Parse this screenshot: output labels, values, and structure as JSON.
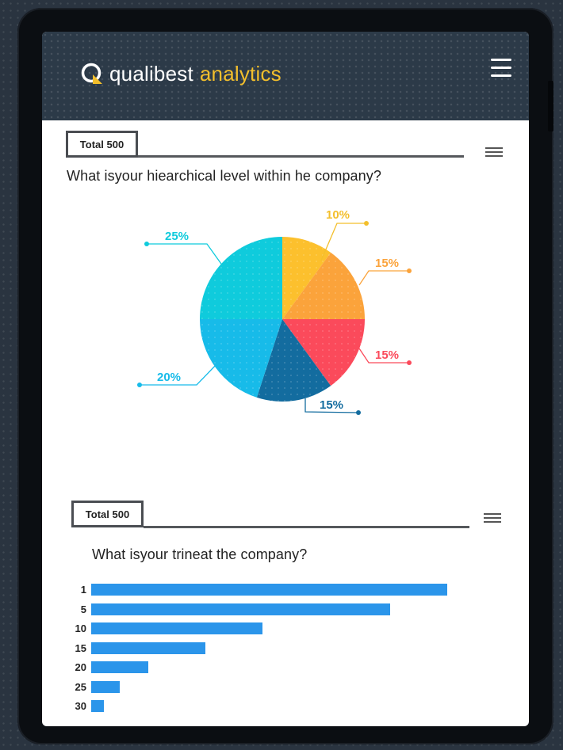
{
  "app": {
    "brand_name": "qualibest",
    "brand_accent": "analytics"
  },
  "colors": {
    "brand_accent": "#f3bf2c",
    "header_bg": "#2c3a48",
    "bar": "#2b95ea"
  },
  "icons": {
    "logo": "qualibest-logo-icon",
    "menu": "menu-icon",
    "card_menu": "hamburger-icon"
  },
  "card1": {
    "total_label": "Total 500",
    "question": "What isyour hiearchical level within he company?",
    "chart_data": {
      "type": "pie",
      "title": "",
      "slices": [
        {
          "value": 10,
          "label": "10%",
          "color": "#fcc02d"
        },
        {
          "value": 15,
          "label": "15%",
          "color": "#fba33b"
        },
        {
          "value": 15,
          "label": "15%",
          "color": "#fb4a5b"
        },
        {
          "value": 15,
          "label": "15%",
          "color": "#136c9f"
        },
        {
          "value": 20,
          "label": "20%",
          "color": "#17bbe9"
        },
        {
          "value": 25,
          "label": "25%",
          "color": "#0fcbdc"
        }
      ]
    }
  },
  "card2": {
    "total_label": "Total 500",
    "question": "What isyour trineat the company?",
    "chart_data": {
      "type": "bar",
      "orientation": "horizontal",
      "categories": [
        "1",
        "5",
        "10",
        "15",
        "20",
        "25",
        "30"
      ],
      "values": [
        100,
        84,
        48,
        32,
        16,
        8,
        3.5
      ],
      "xlim": [
        0,
        100
      ],
      "grid": false
    }
  }
}
